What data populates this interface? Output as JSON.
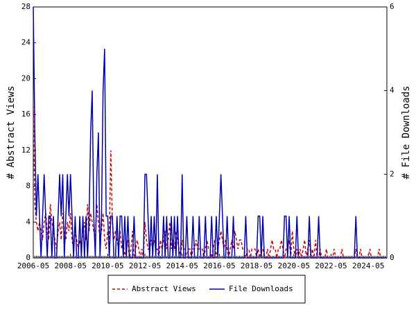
{
  "chart_data": {
    "type": "line",
    "ylabel": "# Abstract Views",
    "y2label": "# File Downloads",
    "categories": [
      "2006-05",
      null,
      null,
      null,
      null,
      null,
      null,
      null,
      null,
      null,
      null,
      null,
      null,
      null,
      null,
      null,
      null,
      null,
      null,
      null,
      null,
      null,
      null,
      null,
      "2008-05",
      null,
      null,
      null,
      null,
      null,
      null,
      null,
      null,
      null,
      null,
      null,
      null,
      null,
      null,
      null,
      null,
      null,
      null,
      null,
      null,
      null,
      null,
      null,
      "2010-05",
      null,
      null,
      null,
      null,
      null,
      null,
      null,
      null,
      null,
      null,
      null,
      null,
      null,
      null,
      null,
      null,
      null,
      null,
      null,
      null,
      null,
      null,
      null,
      "2012-05",
      null,
      null,
      null,
      null,
      null,
      null,
      null,
      null,
      null,
      null,
      null,
      null,
      null,
      null,
      null,
      null,
      null,
      null,
      null,
      null,
      null,
      null,
      null,
      "2014-05",
      null,
      null,
      null,
      null,
      null,
      null,
      null,
      null,
      null,
      null,
      null,
      null,
      null,
      null,
      null,
      null,
      null,
      null,
      null,
      null,
      null,
      null,
      null,
      "2016-05",
      null,
      null,
      null,
      null,
      null,
      null,
      null,
      null,
      null,
      null,
      null,
      null,
      null,
      null,
      null,
      null,
      null,
      null,
      null,
      null,
      null,
      null,
      null,
      "2018-05",
      null,
      null,
      null,
      null,
      null,
      null,
      null,
      null,
      null,
      null,
      null,
      null,
      null,
      null,
      null,
      null,
      null,
      null,
      null,
      null,
      null,
      null,
      null,
      "2020-05",
      null,
      null,
      null,
      null,
      null,
      null,
      null,
      null,
      null,
      null,
      null,
      null,
      null,
      null,
      null,
      null,
      null,
      null,
      null,
      null,
      null,
      null,
      null,
      "2022-05",
      null,
      null,
      null,
      null,
      null,
      null,
      null,
      null,
      null,
      null,
      null,
      null,
      null,
      null,
      null,
      null,
      null,
      null,
      null,
      null,
      null,
      null,
      null,
      "2024-05",
      null,
      null,
      null,
      null,
      null,
      null,
      null,
      null,
      null,
      null,
      null,
      null
    ],
    "series": [
      {
        "name": "Abstract Views",
        "color": "#cc0000",
        "dash": true,
        "axis": "y",
        "values": [
          17,
          6,
          4,
          3,
          4,
          3,
          2,
          4,
          5,
          3,
          2,
          6,
          4,
          3,
          2,
          1,
          3,
          4,
          2,
          5,
          3,
          2,
          4,
          3,
          5,
          2,
          1,
          3,
          2,
          1,
          2,
          1,
          3,
          4,
          2,
          6,
          3,
          5,
          4,
          3,
          2,
          6,
          4,
          2,
          3,
          5,
          2,
          1,
          3,
          2,
          12,
          4,
          2,
          3,
          2,
          1,
          3,
          1,
          2,
          0,
          1,
          2,
          0,
          1,
          3,
          0,
          1,
          2,
          1,
          0,
          1,
          0,
          4,
          2,
          1,
          1,
          2,
          1,
          2,
          1,
          1,
          0,
          2,
          1,
          2,
          3,
          1,
          2,
          4,
          1,
          2,
          1,
          3,
          2,
          1,
          0,
          2,
          1,
          1,
          0,
          1,
          1,
          0,
          1,
          1,
          2,
          1,
          1,
          1,
          1,
          0,
          1,
          2,
          1,
          1,
          0,
          1,
          2,
          0,
          1,
          2,
          3,
          2,
          1,
          2,
          1,
          0,
          1,
          2,
          1,
          3,
          2,
          1,
          2,
          2,
          1,
          1,
          0,
          1,
          1,
          0,
          1,
          1,
          1,
          0,
          1,
          0,
          1,
          1,
          0,
          0,
          1,
          0,
          1,
          2,
          1,
          1,
          0,
          1,
          1,
          2,
          1,
          0,
          1,
          1,
          2,
          0,
          3,
          1,
          0,
          1,
          0,
          1,
          0,
          1,
          2,
          0,
          1,
          2,
          0,
          1,
          0,
          2,
          0,
          0,
          1,
          0,
          0,
          0,
          1,
          0,
          0,
          0,
          0,
          1,
          0,
          0,
          0,
          0,
          1,
          0,
          0,
          0,
          0,
          0,
          0,
          0,
          0,
          1,
          0,
          0,
          1,
          0,
          0,
          0,
          0,
          0,
          1,
          0,
          0,
          0,
          0,
          0,
          1,
          0,
          0,
          0,
          0,
          0
        ]
      },
      {
        "name": "File Downloads",
        "color": "#0000aa",
        "dash": false,
        "axis": "y2",
        "values": [
          6,
          3,
          1,
          2,
          1,
          0,
          1,
          2,
          1,
          0,
          1,
          1,
          0,
          1,
          0,
          0,
          1,
          2,
          1,
          2,
          0,
          1,
          2,
          1,
          2,
          1,
          0,
          1,
          0,
          0,
          1,
          0,
          1,
          0,
          1,
          0,
          1,
          3,
          4,
          1,
          0,
          2,
          3,
          0,
          1,
          4,
          5,
          1,
          1,
          0,
          1,
          1,
          0,
          0,
          1,
          0,
          1,
          1,
          0,
          1,
          0,
          1,
          0,
          0,
          0,
          1,
          0,
          0,
          0,
          0,
          0,
          0,
          2,
          2,
          1,
          0,
          1,
          0,
          1,
          0,
          2,
          0,
          0,
          0,
          1,
          0,
          1,
          0,
          0,
          1,
          0,
          1,
          0,
          1,
          0,
          0,
          2,
          0,
          0,
          1,
          0,
          0,
          0,
          1,
          0,
          0,
          0,
          1,
          0,
          0,
          0,
          1,
          0,
          0,
          0,
          1,
          0,
          0,
          1,
          0,
          1,
          2,
          1,
          0,
          0,
          1,
          0,
          0,
          0,
          1,
          0,
          0,
          0,
          0,
          0,
          0,
          0,
          1,
          0,
          0,
          0,
          0,
          0,
          0,
          0,
          1,
          1,
          0,
          1,
          0,
          0,
          0,
          0,
          0,
          0,
          0,
          0,
          0,
          0,
          0,
          0,
          0,
          1,
          1,
          0,
          1,
          0,
          0,
          0,
          0,
          1,
          0,
          0,
          0,
          0,
          0,
          0,
          0,
          1,
          0,
          0,
          0,
          0,
          0,
          1,
          0,
          0,
          0,
          0,
          0,
          0,
          0,
          0,
          0,
          0,
          0,
          0,
          0,
          0,
          0,
          0,
          0,
          0,
          0,
          0,
          0,
          0,
          0,
          1,
          0,
          0,
          0,
          0,
          0,
          0,
          0,
          0,
          0,
          0,
          0,
          0,
          0,
          0,
          0,
          0,
          0,
          0,
          0,
          0
        ]
      }
    ],
    "ylim": [
      0,
      28
    ],
    "yticks": [
      0,
      4,
      8,
      12,
      16,
      20,
      24,
      28
    ],
    "y2lim": [
      0,
      6
    ],
    "y2ticks": [
      0,
      2,
      4,
      6
    ],
    "legend": "bottom"
  }
}
